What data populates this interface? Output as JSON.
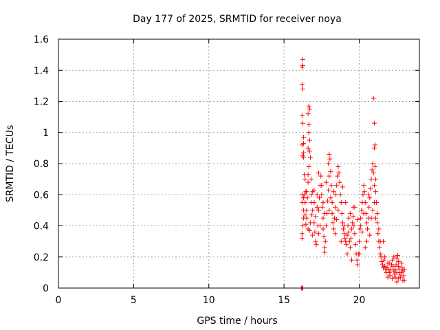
{
  "chart_data": {
    "type": "scatter",
    "title": "Day 177 of 2025, SRMTID for receiver noya",
    "xlabel": "GPS time / hours",
    "ylabel": "SRMTID / TECUs",
    "xlim": [
      0,
      24
    ],
    "ylim": [
      0,
      1.6
    ],
    "x_ticks": [
      0,
      5,
      10,
      15,
      20
    ],
    "x_tick_labels": [
      "0",
      "5",
      "10",
      "15",
      "20"
    ],
    "y_ticks": [
      0,
      0.2,
      0.4,
      0.6,
      0.8,
      1.0,
      1.2,
      1.4,
      1.6
    ],
    "y_tick_labels": [
      "0",
      "0.2",
      "0.4",
      "0.6",
      "0.8",
      "1",
      "1.2",
      "1.4",
      "1.6"
    ],
    "grid": true,
    "marker": "+",
    "marker_color": "#ff0000",
    "series": [
      {
        "name": "SRMTID",
        "points": [
          [
            16.15,
            0.0
          ],
          [
            16.2,
            0.0
          ],
          [
            16.25,
            0.0
          ],
          [
            16.2,
            1.42
          ],
          [
            16.25,
            1.47
          ],
          [
            16.25,
            1.43
          ],
          [
            16.2,
            1.31
          ],
          [
            16.25,
            1.28
          ],
          [
            16.2,
            1.11
          ],
          [
            16.25,
            1.06
          ],
          [
            16.3,
            0.97
          ],
          [
            16.2,
            0.92
          ],
          [
            16.3,
            0.93
          ],
          [
            16.3,
            0.87
          ],
          [
            16.25,
            0.85
          ],
          [
            16.3,
            0.84
          ],
          [
            16.35,
            0.73
          ],
          [
            16.2,
            0.6
          ],
          [
            16.2,
            0.55
          ],
          [
            16.3,
            0.5
          ],
          [
            16.25,
            0.4
          ],
          [
            16.2,
            0.35
          ],
          [
            16.2,
            0.32
          ],
          [
            16.3,
            0.45
          ],
          [
            16.35,
            0.6
          ],
          [
            16.4,
            0.7
          ],
          [
            16.45,
            0.62
          ],
          [
            16.4,
            0.55
          ],
          [
            16.5,
            0.5
          ],
          [
            16.5,
            0.45
          ],
          [
            16.45,
            0.41
          ],
          [
            16.55,
            0.58
          ],
          [
            16.6,
            0.68
          ],
          [
            16.6,
            0.73
          ],
          [
            16.65,
            0.78
          ],
          [
            16.7,
            0.88
          ],
          [
            16.7,
            0.95
          ],
          [
            16.65,
            1.0
          ],
          [
            16.75,
            0.84
          ],
          [
            16.8,
            0.7
          ],
          [
            16.8,
            0.55
          ],
          [
            16.85,
            0.47
          ],
          [
            16.75,
            0.42
          ],
          [
            16.7,
            0.37
          ],
          [
            16.9,
            0.5
          ],
          [
            16.6,
            1.12
          ],
          [
            16.65,
            1.17
          ],
          [
            16.7,
            1.15
          ],
          [
            16.65,
            1.05
          ],
          [
            16.6,
            0.9
          ],
          [
            16.9,
            0.62
          ],
          [
            17.0,
            0.55
          ],
          [
            17.0,
            0.42
          ],
          [
            17.05,
            0.36
          ],
          [
            17.1,
            0.3
          ],
          [
            17.15,
            0.28
          ],
          [
            17.1,
            0.46
          ],
          [
            17.2,
            0.52
          ],
          [
            17.25,
            0.4
          ],
          [
            17.3,
            0.35
          ],
          [
            17.3,
            0.5
          ],
          [
            17.35,
            0.58
          ],
          [
            17.4,
            0.66
          ],
          [
            17.45,
            0.72
          ],
          [
            17.5,
            0.66
          ],
          [
            17.5,
            0.6
          ],
          [
            17.55,
            0.52
          ],
          [
            17.6,
            0.45
          ],
          [
            17.6,
            0.38
          ],
          [
            17.65,
            0.33
          ],
          [
            17.7,
            0.26
          ],
          [
            17.7,
            0.23
          ],
          [
            17.75,
            0.3
          ],
          [
            17.8,
            0.4
          ],
          [
            17.85,
            0.48
          ],
          [
            17.9,
            0.56
          ],
          [
            17.95,
            0.63
          ],
          [
            18.0,
            0.72
          ],
          [
            17.95,
            0.8
          ],
          [
            18.0,
            0.86
          ],
          [
            18.05,
            0.83
          ],
          [
            18.1,
            0.75
          ],
          [
            18.15,
            0.66
          ],
          [
            18.2,
            0.55
          ],
          [
            18.2,
            0.48
          ],
          [
            18.25,
            0.42
          ],
          [
            18.3,
            0.38
          ],
          [
            18.35,
            0.45
          ],
          [
            18.4,
            0.52
          ],
          [
            18.45,
            0.6
          ],
          [
            18.5,
            0.66
          ],
          [
            18.55,
            0.72
          ],
          [
            18.6,
            0.78
          ],
          [
            18.65,
            0.74
          ],
          [
            18.7,
            0.68
          ],
          [
            18.75,
            0.6
          ],
          [
            18.8,
            0.55
          ],
          [
            18.85,
            0.48
          ],
          [
            18.9,
            0.42
          ],
          [
            18.95,
            0.38
          ],
          [
            19.0,
            0.35
          ],
          [
            19.05,
            0.32
          ],
          [
            19.1,
            0.3
          ],
          [
            19.15,
            0.28
          ],
          [
            19.2,
            0.34
          ],
          [
            19.25,
            0.4
          ],
          [
            19.3,
            0.36
          ],
          [
            19.35,
            0.3
          ],
          [
            19.4,
            0.26
          ],
          [
            19.45,
            0.32
          ],
          [
            19.5,
            0.38
          ],
          [
            19.55,
            0.42
          ],
          [
            19.6,
            0.46
          ],
          [
            19.65,
            0.4
          ],
          [
            19.7,
            0.35
          ],
          [
            19.75,
            0.28
          ],
          [
            19.8,
            0.22
          ],
          [
            19.85,
            0.18
          ],
          [
            19.9,
            0.15
          ],
          [
            19.95,
            0.22
          ],
          [
            20.0,
            0.3
          ],
          [
            20.05,
            0.38
          ],
          [
            20.1,
            0.45
          ],
          [
            20.15,
            0.5
          ],
          [
            20.2,
            0.55
          ],
          [
            20.25,
            0.6
          ],
          [
            20.3,
            0.66
          ],
          [
            20.35,
            0.62
          ],
          [
            20.4,
            0.55
          ],
          [
            20.45,
            0.48
          ],
          [
            20.5,
            0.42
          ],
          [
            20.55,
            0.38
          ],
          [
            20.6,
            0.45
          ],
          [
            20.65,
            0.52
          ],
          [
            20.7,
            0.58
          ],
          [
            20.75,
            0.64
          ],
          [
            20.8,
            0.7
          ],
          [
            20.85,
            0.76
          ],
          [
            20.9,
            0.8
          ],
          [
            20.95,
            0.74
          ],
          [
            21.0,
            0.66
          ],
          [
            20.95,
            1.22
          ],
          [
            21.0,
            1.06
          ],
          [
            21.05,
            0.92
          ],
          [
            21.0,
            0.9
          ],
          [
            21.05,
            0.78
          ],
          [
            21.1,
            0.7
          ],
          [
            21.1,
            0.62
          ],
          [
            21.15,
            0.55
          ],
          [
            21.2,
            0.48
          ],
          [
            21.2,
            0.42
          ],
          [
            21.25,
            0.35
          ],
          [
            21.3,
            0.3
          ],
          [
            21.35,
            0.26
          ],
          [
            21.4,
            0.22
          ],
          [
            21.45,
            0.2
          ],
          [
            21.5,
            0.17
          ],
          [
            21.55,
            0.15
          ],
          [
            21.6,
            0.13
          ],
          [
            21.65,
            0.18
          ],
          [
            21.7,
            0.14
          ],
          [
            21.75,
            0.12
          ],
          [
            21.8,
            0.1
          ],
          [
            21.85,
            0.13
          ],
          [
            21.9,
            0.16
          ],
          [
            21.95,
            0.12
          ],
          [
            22.0,
            0.1
          ],
          [
            22.05,
            0.08
          ],
          [
            22.1,
            0.12
          ],
          [
            22.15,
            0.15
          ],
          [
            22.2,
            0.18
          ],
          [
            22.25,
            0.14
          ],
          [
            22.3,
            0.11
          ],
          [
            22.35,
            0.09
          ],
          [
            22.4,
            0.12
          ],
          [
            22.45,
            0.15
          ],
          [
            22.5,
            0.19
          ],
          [
            22.55,
            0.21
          ],
          [
            22.6,
            0.17
          ],
          [
            22.65,
            0.12
          ],
          [
            22.7,
            0.09
          ],
          [
            22.75,
            0.07
          ],
          [
            22.8,
            0.1
          ],
          [
            22.85,
            0.13
          ],
          [
            22.9,
            0.11
          ],
          [
            22.95,
            0.08
          ],
          [
            23.0,
            0.05
          ],
          [
            22.6,
            0.06
          ],
          [
            22.5,
            0.04
          ],
          [
            22.4,
            0.07
          ],
          [
            17.0,
            0.63
          ],
          [
            17.3,
            0.74
          ],
          [
            17.8,
            0.68
          ],
          [
            18.3,
            0.62
          ],
          [
            18.6,
            0.5
          ],
          [
            19.0,
            0.4
          ],
          [
            19.3,
            0.45
          ],
          [
            19.6,
            0.52
          ],
          [
            19.9,
            0.44
          ],
          [
            20.2,
            0.36
          ],
          [
            20.5,
            0.3
          ],
          [
            20.8,
            0.45
          ],
          [
            21.0,
            0.55
          ],
          [
            16.5,
            0.62
          ],
          [
            16.8,
            0.6
          ],
          [
            17.2,
            0.6
          ],
          [
            17.6,
            0.55
          ],
          [
            18.0,
            0.5
          ],
          [
            18.4,
            0.35
          ],
          [
            18.8,
            0.3
          ],
          [
            19.2,
            0.22
          ],
          [
            19.5,
            0.18
          ],
          [
            20.0,
            0.22
          ],
          [
            20.4,
            0.26
          ],
          [
            20.7,
            0.34
          ],
          [
            21.3,
            0.38
          ],
          [
            21.6,
            0.3
          ],
          [
            16.3,
            0.58
          ],
          [
            16.4,
            0.47
          ],
          [
            16.6,
            0.38
          ],
          [
            16.9,
            0.34
          ],
          [
            17.4,
            0.4
          ],
          [
            17.7,
            0.48
          ],
          [
            18.1,
            0.58
          ],
          [
            18.5,
            0.44
          ],
          [
            18.9,
            0.65
          ],
          [
            19.1,
            0.55
          ],
          [
            19.4,
            0.48
          ],
          [
            19.7,
            0.52
          ],
          [
            20.1,
            0.4
          ],
          [
            20.3,
            0.48
          ],
          [
            20.6,
            0.6
          ],
          [
            20.9,
            0.5
          ],
          [
            21.1,
            0.45
          ],
          [
            21.4,
            0.3
          ],
          [
            21.7,
            0.2
          ],
          [
            22.0,
            0.16
          ],
          [
            22.3,
            0.2
          ],
          [
            22.6,
            0.14
          ],
          [
            22.9,
            0.05
          ],
          [
            23.0,
            0.12
          ],
          [
            21.9,
            0.07
          ],
          [
            22.2,
            0.06
          ],
          [
            22.5,
            0.1
          ],
          [
            22.8,
            0.16
          ]
        ]
      }
    ]
  }
}
